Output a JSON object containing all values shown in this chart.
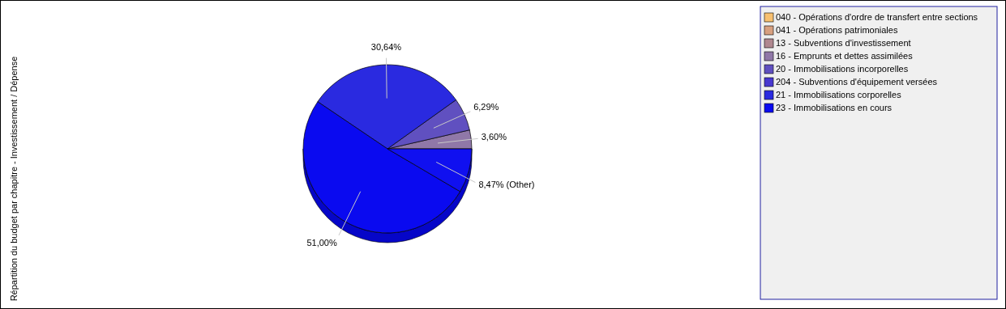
{
  "chart_data": {
    "type": "pie",
    "title": "Répartition du budget par chapitre - Investissement / Dépense",
    "categories": [
      "040 - Opérations d'ordre de transfert entre sections",
      "041 - Opérations patrimoniales",
      "13 - Subventions d'investissement",
      "16 - Emprunts et dettes assimilées",
      "20 - Immobilisations incorporelles",
      "204 - Subventions d'équipement versées",
      "21 - Immobilisations corporelles",
      "23 - Immobilisations en cours",
      null
    ],
    "values": [
      null,
      null,
      null,
      3.6,
      6.29,
      null,
      30.64,
      51.0,
      8.47
    ],
    "colors": [
      "#f8c070",
      "#d8a080",
      "#b08890",
      "#9078a8",
      "#6050c0",
      "#4838d0",
      "#2a2ae0",
      "#0a0af0",
      "#1010f0"
    ],
    "value_labels": [
      null,
      null,
      null,
      "3,60%",
      "6,29%",
      null,
      "30,64%",
      "51,00%",
      "8,47% (Other)"
    ],
    "legend": "right"
  }
}
